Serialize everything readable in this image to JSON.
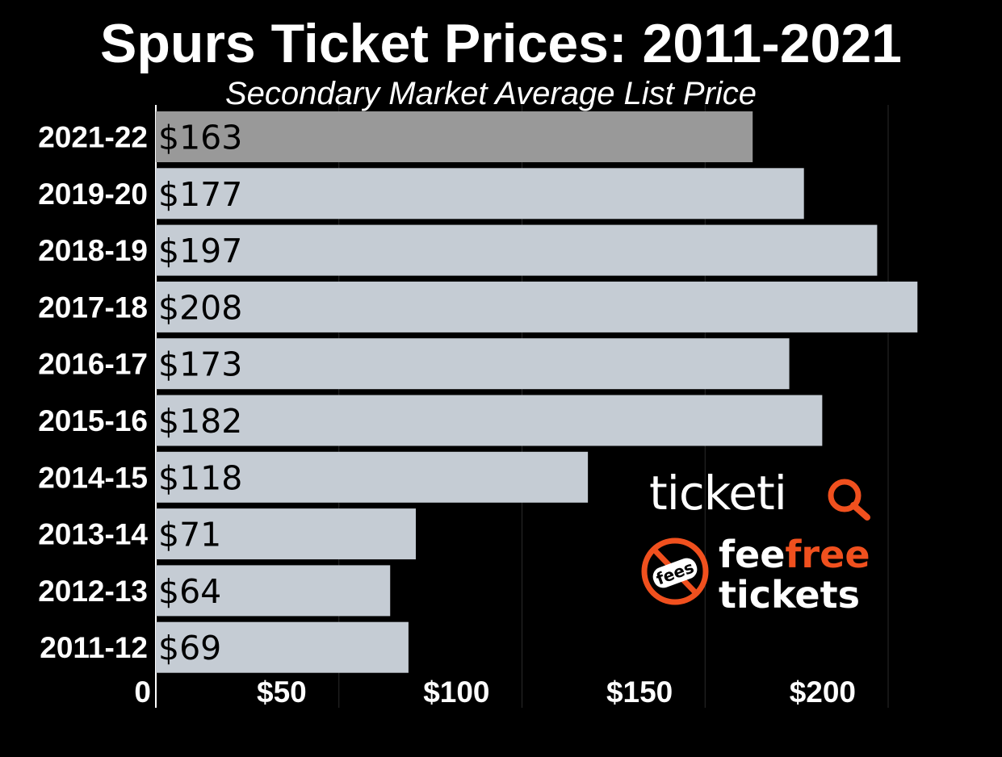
{
  "title": "Spurs Ticket Prices: 2011-2021",
  "subtitle": "Secondary Market Average List Price",
  "colors": {
    "background": "#000000",
    "bar": "#c5ccd4",
    "bar_highlight": "#999999",
    "brand_orange": "#f0501e",
    "text": "#ffffff"
  },
  "chart_data": {
    "type": "bar",
    "orientation": "horizontal",
    "categories": [
      "2021-22",
      "2019-20",
      "2018-19",
      "2017-18",
      "2016-17",
      "2015-16",
      "2014-15",
      "2013-14",
      "2012-13",
      "2011-12"
    ],
    "values": [
      163,
      177,
      197,
      208,
      173,
      182,
      118,
      71,
      64,
      69
    ],
    "value_labels": [
      "$163",
      "$177",
      "$197",
      "$208",
      "$173",
      "$182",
      "$118",
      "$71",
      "$64",
      "$69"
    ],
    "highlight_index": 0,
    "xlim": [
      0,
      215
    ],
    "x_ticks": [
      0,
      50,
      100,
      150,
      200
    ],
    "x_tick_labels": [
      "0",
      "$50",
      "$100",
      "$150",
      "$200"
    ],
    "grid": "vertical",
    "legend": "none"
  },
  "logos": {
    "ticketiq": {
      "text": "ticketi",
      "icon": "magnifier-q-icon"
    },
    "feefree": {
      "badge_text": "fees",
      "word_fee": "fee",
      "word_free": "free",
      "word_tickets": "tickets",
      "icon": "no-fees-icon"
    }
  }
}
